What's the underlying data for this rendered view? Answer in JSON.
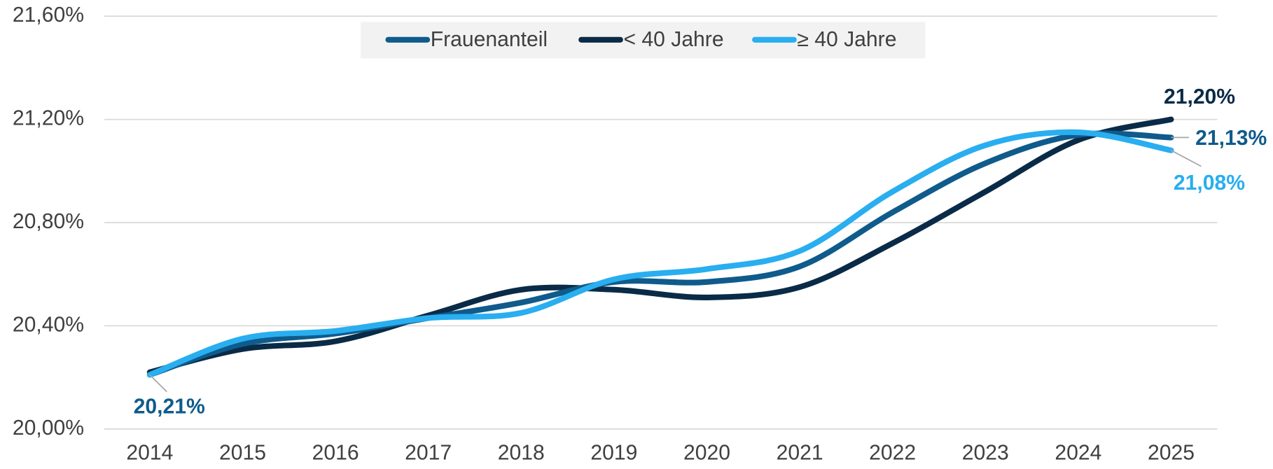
{
  "chart_data": {
    "type": "line",
    "categories": [
      "2014",
      "2015",
      "2016",
      "2017",
      "2018",
      "2019",
      "2020",
      "2021",
      "2022",
      "2023",
      "2024",
      "2025"
    ],
    "series": [
      {
        "name": "Frauenanteil",
        "color": "#0f5b8c",
        "values": [
          20.21,
          20.33,
          20.37,
          20.43,
          20.49,
          20.57,
          20.57,
          20.63,
          20.84,
          21.03,
          21.14,
          21.13
        ],
        "value_labels": [
          "20,21%",
          null,
          null,
          null,
          null,
          null,
          null,
          null,
          null,
          null,
          null,
          "21,13%"
        ]
      },
      {
        "name": "< 40 Jahre",
        "color": "#0a2b47",
        "values": [
          20.22,
          20.31,
          20.34,
          20.44,
          20.54,
          20.54,
          20.51,
          20.55,
          20.72,
          20.92,
          21.12,
          21.2
        ],
        "value_labels": [
          null,
          null,
          null,
          null,
          null,
          null,
          null,
          null,
          null,
          null,
          null,
          "21,20%"
        ]
      },
      {
        "name": "≥ 40 Jahre",
        "color": "#29aef0",
        "values": [
          20.21,
          20.35,
          20.38,
          20.43,
          20.45,
          20.58,
          20.62,
          20.69,
          20.92,
          21.1,
          21.15,
          21.08
        ],
        "value_labels": [
          null,
          null,
          null,
          null,
          null,
          null,
          null,
          null,
          null,
          null,
          null,
          "21,08%"
        ]
      }
    ],
    "ylim": [
      20.0,
      21.6
    ],
    "yticks": [
      {
        "value": 20.0,
        "label": "20,00%"
      },
      {
        "value": 20.4,
        "label": "20,40%"
      },
      {
        "value": 20.8,
        "label": "20,80%"
      },
      {
        "value": 21.2,
        "label": "21,20%"
      },
      {
        "value": 21.6,
        "label": "21,60%"
      }
    ],
    "grid": true,
    "legend": "top"
  }
}
